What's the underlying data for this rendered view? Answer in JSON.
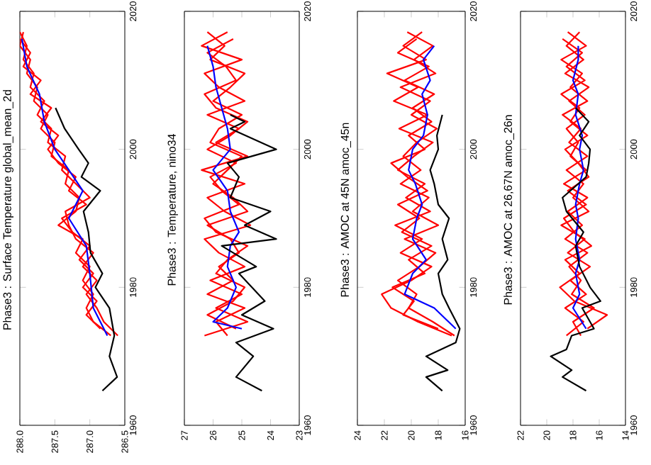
{
  "chart_data": [
    {
      "type": "line",
      "title": "Phase3 : Surface Temperature global_mean_2d",
      "ylim": [
        1960,
        2020
      ],
      "yticks": [
        1960,
        1980,
        2000,
        2020
      ],
      "xlim": [
        288.0,
        286.5
      ],
      "xticks": [
        {
          "value": 286.5,
          "label": "286.5"
        },
        {
          "value": 287.0,
          "label": "287.0"
        },
        {
          "value": 287.5,
          "label": "287.5"
        },
        {
          "value": 288.0,
          "label": "288.0"
        }
      ],
      "series": [
        {
          "color": "#ff0000",
          "values": [
            1973,
            1975,
            1977,
            1979,
            1981,
            1983,
            1985,
            1987,
            1989,
            1991,
            1993,
            1995,
            1997,
            1999,
            2001,
            2003,
            2005,
            2007,
            2009,
            2011,
            2013,
            2015,
            2017
          ],
          "x": [
            286.7,
            286.95,
            287.05,
            286.95,
            287.1,
            287.0,
            287.2,
            287.1,
            287.45,
            287.2,
            287.15,
            287.35,
            287.3,
            287.55,
            287.5,
            287.7,
            287.6,
            287.8,
            287.75,
            287.9,
            287.85,
            288.0,
            287.95
          ]
        },
        {
          "color": "#ff0000",
          "values": [
            1974,
            1976,
            1978,
            1980,
            1982,
            1984,
            1986,
            1988,
            1990,
            1992,
            1994,
            1996,
            1998,
            2000,
            2002,
            2004,
            2006,
            2008,
            2010,
            2012,
            2014,
            2016
          ],
          "x": [
            286.85,
            287.05,
            286.9,
            287.1,
            286.95,
            287.15,
            287.0,
            287.25,
            287.4,
            287.05,
            287.3,
            287.2,
            287.45,
            287.6,
            287.45,
            287.7,
            287.55,
            287.85,
            287.7,
            287.95,
            287.85,
            288.0
          ]
        },
        {
          "color": "#ff0000",
          "values": [
            1973,
            1975,
            1977,
            1979,
            1981,
            1983,
            1985,
            1987,
            1989,
            1991,
            1993,
            1995,
            1997,
            1999,
            2001,
            2003,
            2005,
            2007,
            2009,
            2011,
            2013,
            2015,
            2017
          ],
          "x": [
            286.6,
            286.8,
            286.9,
            287.05,
            286.9,
            287.1,
            286.95,
            287.2,
            287.3,
            287.35,
            287.0,
            287.2,
            287.4,
            287.35,
            287.6,
            287.55,
            287.75,
            287.65,
            287.85,
            287.8,
            287.95,
            287.9,
            288.0
          ]
        },
        {
          "color": "#0000ff",
          "values": [
            1973,
            1977,
            1982,
            1986,
            1990,
            1994,
            1997,
            2000,
            2004,
            2008,
            2012,
            2016
          ],
          "x": [
            286.75,
            286.95,
            287.0,
            287.05,
            287.3,
            287.1,
            287.3,
            287.5,
            287.65,
            287.72,
            287.9,
            287.97
          ]
        },
        {
          "color": "#000000",
          "values": [
            1965,
            1967,
            1970,
            1973,
            1977,
            1980,
            1982,
            1985,
            1988,
            1991,
            1994,
            1996,
            1998,
            2000,
            2003,
            2006
          ],
          "x": [
            286.82,
            286.61,
            286.72,
            286.65,
            286.72,
            286.92,
            286.82,
            286.99,
            287.02,
            287.09,
            286.85,
            287.12,
            287.02,
            287.16,
            287.36,
            287.49
          ]
        }
      ]
    },
    {
      "type": "line",
      "title": "Phase3 : Temperature, nino34",
      "ylim": [
        1960,
        2020
      ],
      "yticks": [
        1960,
        1980,
        2000,
        2020
      ],
      "xlim": [
        27,
        23
      ],
      "xticks": [
        23,
        24,
        25,
        26,
        27
      ],
      "series": [
        {
          "color": "#ff0000",
          "values": [
            1973,
            1975,
            1977,
            1979,
            1981,
            1983,
            1985,
            1987,
            1989,
            1991,
            1993,
            1995,
            1997,
            1999,
            2001,
            2003,
            2005,
            2007,
            2009,
            2011,
            2013,
            2015,
            2017
          ],
          "x": [
            26.3,
            24.8,
            25.9,
            25.0,
            26.1,
            24.9,
            25.8,
            26.3,
            24.7,
            25.6,
            26.2,
            24.9,
            26.4,
            24.8,
            25.9,
            25.1,
            26.2,
            24.9,
            25.8,
            26.3,
            25.0,
            26.4,
            25.5
          ]
        },
        {
          "color": "#ff0000",
          "values": [
            1974,
            1976,
            1978,
            1980,
            1982,
            1984,
            1986,
            1988,
            1990,
            1992,
            1994,
            1996,
            1998,
            2000,
            2002,
            2004,
            2006,
            2008,
            2010,
            2012,
            2014,
            2016
          ],
          "x": [
            25.2,
            26.2,
            25.3,
            24.9,
            25.9,
            25.5,
            24.8,
            25.9,
            26.3,
            25.1,
            25.7,
            26.1,
            25.2,
            26.2,
            25.4,
            24.8,
            25.9,
            26.3,
            25.2,
            25.55,
            26.2,
            25.3
          ]
        },
        {
          "color": "#ff0000",
          "values": [
            1973,
            1975,
            1977,
            1979,
            1981,
            1983,
            1985,
            1987,
            1989,
            1991,
            1993,
            1995,
            1997,
            1999,
            2001,
            2003,
            2005,
            2007,
            2009,
            2011,
            2013,
            2015,
            2017
          ],
          "x": [
            25.5,
            25.9,
            24.9,
            26.2,
            25.3,
            25.8,
            25.1,
            25.4,
            26.2,
            24.8,
            25.3,
            26.0,
            25.5,
            25.0,
            26.1,
            25.8,
            25.0,
            26.0,
            25.4,
            24.9,
            26.1,
            25.6,
            26.2
          ]
        },
        {
          "color": "#0000ff",
          "values": [
            1974,
            1975,
            1977,
            1980,
            1983,
            1986,
            1988,
            1991,
            1994,
            1997,
            2000,
            2003,
            2006,
            2009,
            2012,
            2015
          ],
          "x": [
            25.0,
            26.0,
            25.5,
            25.2,
            25.5,
            25.4,
            25.1,
            25.4,
            25.5,
            26.0,
            25.4,
            25.5,
            25.7,
            25.9,
            26.0,
            26.2
          ]
        },
        {
          "color": "#000000",
          "values": [
            1965,
            1967,
            1970,
            1972,
            1974,
            1976,
            1978,
            1982,
            1983,
            1986,
            1987,
            1989,
            1991,
            1993,
            1996,
            1998,
            2000,
            2003,
            2004,
            2005
          ],
          "x": [
            24.3,
            25.2,
            24.6,
            25.2,
            23.9,
            25.0,
            24.2,
            25.1,
            24.5,
            25.7,
            23.8,
            24.9,
            24.0,
            25.4,
            25.1,
            25.5,
            23.8,
            25.4,
            24.9,
            25.4
          ]
        }
      ]
    },
    {
      "type": "line",
      "title": "Phase3 : AMOC at 45N amoc_45n",
      "ylim": [
        1960,
        2020
      ],
      "yticks": [
        1960,
        1980,
        2000,
        2020
      ],
      "xlim": [
        24,
        16
      ],
      "xticks": [
        16,
        18,
        20,
        22,
        24
      ],
      "series": [
        {
          "color": "#ff0000",
          "values": [
            1973,
            1975,
            1977,
            1979,
            1981,
            1983,
            1985,
            1987,
            1989,
            1991,
            1993,
            1995,
            1997,
            1999,
            2001,
            2003,
            2005,
            2007,
            2009,
            2011,
            2013,
            2015,
            2017
          ],
          "x": [
            17.0,
            19.5,
            21.5,
            22.2,
            20.0,
            18.5,
            20.8,
            19.2,
            21.2,
            18.6,
            20.4,
            19.0,
            21.0,
            19.8,
            18.4,
            20.9,
            18.8,
            21.3,
            19.5,
            21.8,
            18.9,
            20.6,
            19.2
          ]
        },
        {
          "color": "#ff0000",
          "values": [
            1974,
            1976,
            1978,
            1980,
            1982,
            1984,
            1986,
            1988,
            1990,
            1992,
            1994,
            1996,
            1998,
            2000,
            2002,
            2004,
            2006,
            2008,
            2010,
            2012,
            2014,
            2016
          ],
          "x": [
            18.0,
            20.6,
            19.8,
            21.4,
            19.0,
            20.2,
            18.5,
            20.7,
            19.4,
            21.0,
            18.8,
            20.3,
            21.5,
            19.0,
            20.2,
            18.5,
            19.9,
            18.3,
            20.5,
            18.7,
            21.0,
            19.6
          ]
        },
        {
          "color": "#ff0000",
          "values": [
            1973,
            1975,
            1977,
            1979,
            1981,
            1983,
            1985,
            1987,
            1989,
            1991,
            1993,
            1995,
            1997,
            1999,
            2001,
            2003,
            2005,
            2007,
            2009,
            2011,
            2013,
            2015,
            2017
          ],
          "x": [
            16.8,
            18.4,
            20.2,
            19.6,
            21.0,
            19.4,
            18.2,
            20.5,
            18.0,
            19.9,
            18.7,
            20.8,
            19.3,
            20.6,
            19.6,
            18.1,
            20.0,
            18.6,
            20.8,
            18.2,
            19.8,
            18.4,
            20.3
          ]
        },
        {
          "color": "#0000ff",
          "values": [
            1974,
            1977,
            1979,
            1982,
            1984,
            1987,
            1990,
            1992,
            1995,
            1997,
            2000,
            2002,
            2005,
            2008,
            2010,
            2013,
            2015
          ],
          "x": [
            16.7,
            18.3,
            20.5,
            19.9,
            18.9,
            19.9,
            19.6,
            19.2,
            19.7,
            20.2,
            19.9,
            19.1,
            18.8,
            19.2,
            18.6,
            19.1,
            18.3
          ]
        },
        {
          "color": "#000000",
          "values": [
            1965,
            1967,
            1968,
            1970,
            1972,
            1974,
            1977,
            1979,
            1982,
            1984,
            1987,
            1990,
            1992,
            1995,
            1997,
            2000,
            2002,
            2005
          ],
          "x": [
            17.7,
            18.9,
            17.3,
            18.9,
            16.7,
            16.4,
            17.2,
            17.7,
            18.0,
            17.3,
            17.7,
            17.2,
            18.0,
            18.3,
            18.6,
            18.0,
            18.1,
            17.7
          ]
        }
      ]
    },
    {
      "type": "line",
      "title": "Phase3 : AMOC at 26,67N amoc_26n",
      "ylim": [
        1960,
        2020
      ],
      "yticks": [
        1960,
        1980,
        2000,
        2020
      ],
      "xlim": [
        22,
        14
      ],
      "xticks": [
        14,
        16,
        18,
        20,
        22
      ],
      "series": [
        {
          "color": "#ff0000",
          "values": [
            1973,
            1975,
            1977,
            1979,
            1981,
            1983,
            1985,
            1987,
            1989,
            1991,
            1993,
            1995,
            1997,
            1999,
            2001,
            2003,
            2005,
            2007,
            2009,
            2011,
            2013,
            2015,
            2017
          ],
          "x": [
            18.5,
            17.2,
            18.6,
            17.0,
            18.2,
            16.7,
            18.4,
            17.1,
            18.9,
            16.8,
            18.0,
            17.2,
            18.5,
            16.9,
            18.3,
            17.4,
            18.8,
            16.9,
            18.2,
            17.3,
            18.9,
            17.0,
            18.4
          ]
        },
        {
          "color": "#ff0000",
          "values": [
            1974,
            1976,
            1978,
            1980,
            1982,
            1984,
            1986,
            1988,
            1990,
            1992,
            1994,
            1996,
            1998,
            2000,
            2002,
            2004,
            2006,
            2008,
            2010,
            2012,
            2014,
            2016
          ],
          "x": [
            16.9,
            15.4,
            17.9,
            19.0,
            17.5,
            18.6,
            16.6,
            17.9,
            18.7,
            17.0,
            18.4,
            16.8,
            17.6,
            18.6,
            16.9,
            18.2,
            17.5,
            18.9,
            17.1,
            18.5,
            17.3,
            18.8
          ]
        },
        {
          "color": "#ff0000",
          "values": [
            1973,
            1975,
            1977,
            1979,
            1981,
            1983,
            1985,
            1987,
            1989,
            1991,
            1993,
            1995,
            1997,
            1999,
            2001,
            2003,
            2005,
            2007,
            2009,
            2011,
            2013,
            2015,
            2017
          ],
          "x": [
            17.4,
            18.0,
            16.4,
            18.1,
            17.4,
            18.3,
            16.9,
            18.6,
            17.3,
            18.4,
            16.9,
            18.7,
            17.0,
            18.2,
            17.6,
            18.5,
            17.1,
            18.3,
            16.8,
            18.6,
            17.2,
            18.5,
            17.5
          ]
        },
        {
          "color": "#0000ff",
          "values": [
            1974,
            1977,
            1979,
            1982,
            1984,
            1987,
            1990,
            1992,
            1995,
            1997,
            2000,
            2002,
            2005,
            2008,
            2010,
            2013,
            2015
          ],
          "x": [
            17.0,
            18.0,
            17.5,
            17.8,
            17.5,
            17.8,
            17.6,
            17.8,
            17.5,
            17.2,
            17.5,
            17.3,
            17.8,
            17.6,
            18.0,
            17.6,
            17.6
          ]
        },
        {
          "color": "#000000",
          "values": [
            1965,
            1967,
            1968,
            1970,
            1971,
            1973,
            1974,
            1977,
            1978,
            1980,
            1983,
            1986,
            1988,
            1991,
            1993,
            1996,
            1998,
            2000,
            2002,
            2004,
            2006
          ],
          "x": [
            17.0,
            18.8,
            18.1,
            19.7,
            18.5,
            18.1,
            16.4,
            17.3,
            15.9,
            16.7,
            17.5,
            17.8,
            17.2,
            18.5,
            18.8,
            17.0,
            16.8,
            16.7,
            17.5,
            16.8,
            17.8
          ]
        }
      ]
    }
  ]
}
